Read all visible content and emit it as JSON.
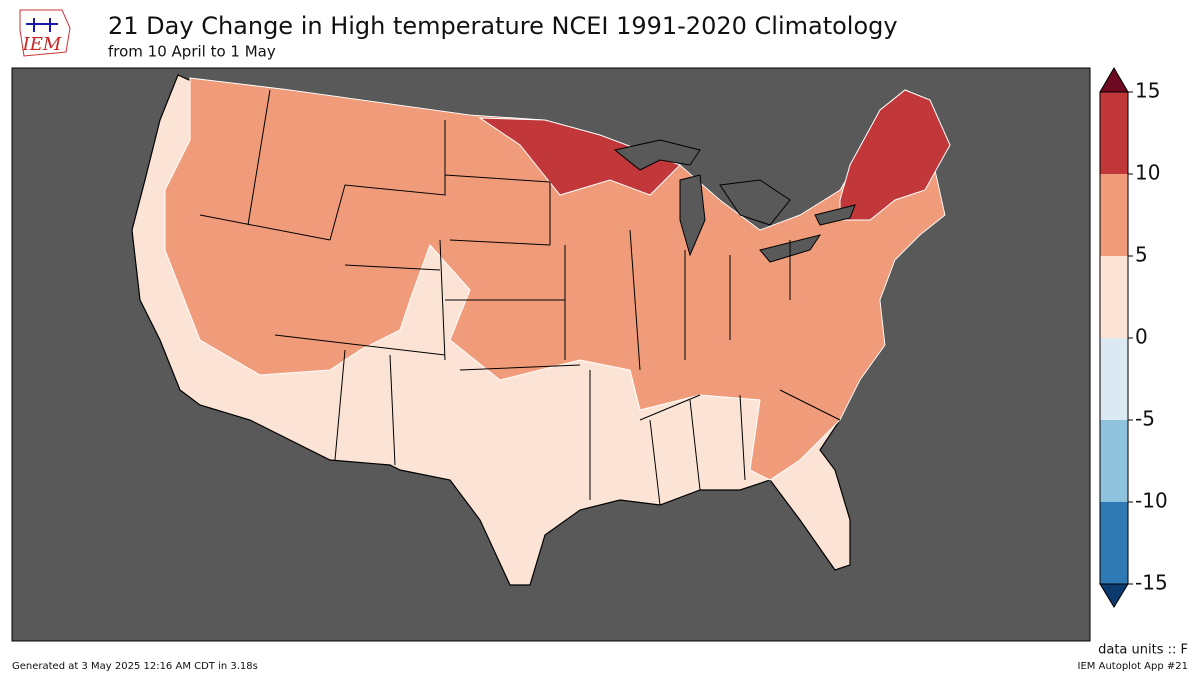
{
  "title": "21 Day Change in High temperature NCEI 1991-2020 Climatology",
  "subtitle": "from 10 April to 1 May",
  "logo": "IEM",
  "colorbar": {
    "ticks": [
      -15,
      -10,
      -5,
      0,
      5,
      10,
      15
    ],
    "colors": [
      "#2f79b5",
      "#8fc2dd",
      "#dbe9f2",
      "#fbe3d6",
      "#f09c7b",
      "#c1373a"
    ],
    "under_color": "#0b3a6e",
    "over_color": "#6d0a22",
    "units": "data units :: F"
  },
  "footer": {
    "left": "Generated at 3 May 2025 12:16 AM CDT in 3.18s",
    "right": "IEM Autoplot App #21"
  }
}
